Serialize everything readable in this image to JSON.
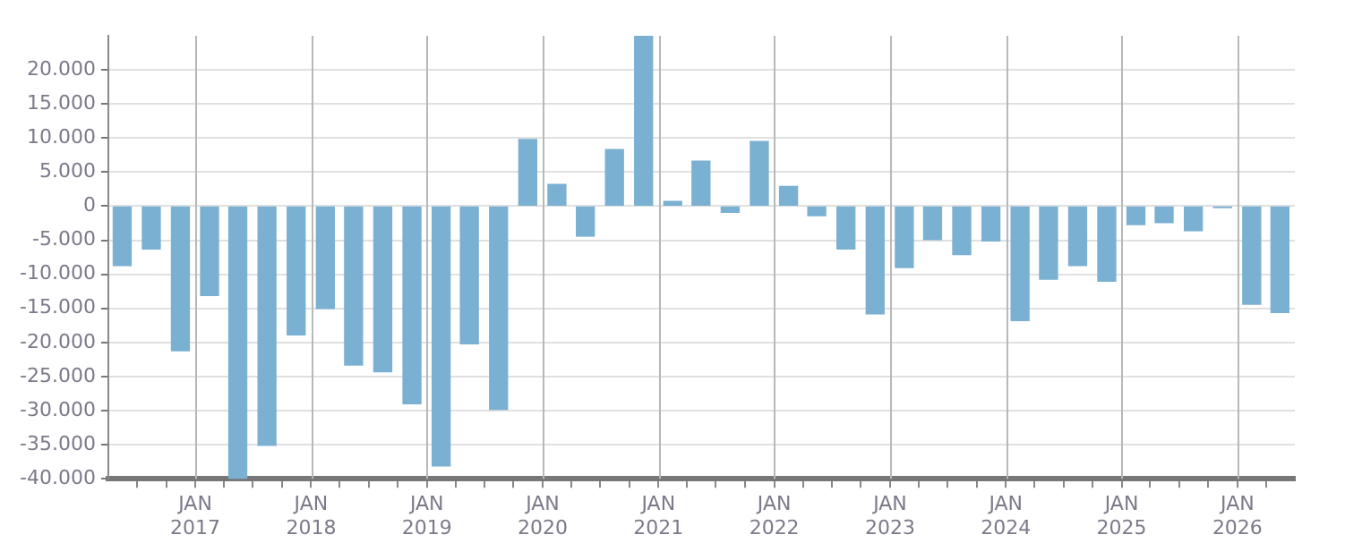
{
  "chart_data": {
    "type": "bar",
    "x": [
      "2016-05-15",
      "2016-08-15",
      "2016-11-15",
      "2017-02-15",
      "2017-05-15",
      "2017-08-15",
      "2017-11-15",
      "2018-02-15",
      "2018-05-15",
      "2018-08-15",
      "2018-11-15",
      "2019-02-15",
      "2019-05-15",
      "2019-08-15",
      "2019-11-15",
      "2020-02-15",
      "2020-05-15",
      "2020-08-15",
      "2020-11-15",
      "2021-02-15",
      "2021-05-15",
      "2021-08-15",
      "2021-11-15",
      "2022-02-15",
      "2022-05-15",
      "2022-08-15",
      "2022-11-15",
      "2023-02-15",
      "2023-05-15",
      "2023-08-15",
      "2023-11-15",
      "2024-02-15",
      "2024-05-15",
      "2024-08-15",
      "2024-11-15",
      "2025-02-15",
      "2025-05-15",
      "2025-08-15",
      "2025-11-15",
      "2026-02-15",
      "2026-05-15"
    ],
    "values": [
      -8700,
      -6300,
      -21200,
      -13100,
      -40000,
      -35100,
      -18900,
      -15000,
      -23300,
      -24300,
      -29000,
      -38100,
      -20200,
      -29800,
      9800,
      3200,
      -4400,
      8300,
      24900,
      700,
      6600,
      -900,
      9500,
      2900,
      -1400,
      -6300,
      -15800,
      -9000,
      -4900,
      -7100,
      -5100,
      -16800,
      -10700,
      -8700,
      -11000,
      -2700,
      -2400,
      -3600,
      -200,
      -14400,
      -15600
    ],
    "color": "#7ab0d2",
    "xlim": [
      "2016-04-01",
      "2026-07-01"
    ],
    "xticks": [
      {
        "value": "2016-07-01",
        "label": null
      },
      {
        "value": "2016-10-01",
        "label": null
      },
      {
        "value": "2017-01-01",
        "label": "JAN\n2017"
      },
      {
        "value": "2017-04-01",
        "label": null
      },
      {
        "value": "2017-07-01",
        "label": null
      },
      {
        "value": "2017-10-01",
        "label": null
      },
      {
        "value": "2018-01-01",
        "label": "JAN\n2018"
      },
      {
        "value": "2018-04-01",
        "label": null
      },
      {
        "value": "2018-07-01",
        "label": null
      },
      {
        "value": "2018-10-01",
        "label": null
      },
      {
        "value": "2019-01-01",
        "label": "JAN\n2019"
      },
      {
        "value": "2019-04-01",
        "label": null
      },
      {
        "value": "2019-07-01",
        "label": null
      },
      {
        "value": "2019-10-01",
        "label": null
      },
      {
        "value": "2020-01-01",
        "label": "JAN\n2020"
      },
      {
        "value": "2020-04-01",
        "label": null
      },
      {
        "value": "2020-07-01",
        "label": null
      },
      {
        "value": "2020-10-01",
        "label": null
      },
      {
        "value": "2021-01-01",
        "label": "JAN\n2021"
      },
      {
        "value": "2021-04-01",
        "label": null
      },
      {
        "value": "2021-07-01",
        "label": null
      },
      {
        "value": "2021-10-01",
        "label": null
      },
      {
        "value": "2022-01-01",
        "label": "JAN\n2022"
      },
      {
        "value": "2022-04-01",
        "label": null
      },
      {
        "value": "2022-07-01",
        "label": null
      },
      {
        "value": "2022-10-01",
        "label": null
      },
      {
        "value": "2023-01-01",
        "label": "JAN\n2023"
      },
      {
        "value": "2023-04-01",
        "label": null
      },
      {
        "value": "2023-07-01",
        "label": null
      },
      {
        "value": "2023-10-01",
        "label": null
      },
      {
        "value": "2024-01-01",
        "label": "JAN\n2024"
      },
      {
        "value": "2024-04-01",
        "label": null
      },
      {
        "value": "2024-07-01",
        "label": null
      },
      {
        "value": "2024-10-01",
        "label": null
      },
      {
        "value": "2025-01-01",
        "label": "JAN\n2025"
      },
      {
        "value": "2025-04-01",
        "label": null
      },
      {
        "value": "2025-07-01",
        "label": null
      },
      {
        "value": "2025-10-01",
        "label": null
      },
      {
        "value": "2026-01-01",
        "label": "JAN\n2026"
      },
      {
        "value": "2026-04-01",
        "label": null
      }
    ],
    "ylim": [
      -40000,
      25000
    ],
    "yticks": [
      {
        "value": -40000,
        "label": "-40.000"
      },
      {
        "value": -35000,
        "label": "-35.000"
      },
      {
        "value": -30000,
        "label": "-30.000"
      },
      {
        "value": -25000,
        "label": "-25.000"
      },
      {
        "value": -20000,
        "label": "-20.000"
      },
      {
        "value": -15000,
        "label": "-15.000"
      },
      {
        "value": -10000,
        "label": "-10.000"
      },
      {
        "value": -5000,
        "label": "-5.000"
      },
      {
        "value": 0,
        "label": "0"
      },
      {
        "value": 5000,
        "label": "5.000"
      },
      {
        "value": 10000,
        "label": "10.000"
      },
      {
        "value": 15000,
        "label": "15.000"
      },
      {
        "value": 20000,
        "label": "20.000"
      }
    ],
    "grid": true
  }
}
